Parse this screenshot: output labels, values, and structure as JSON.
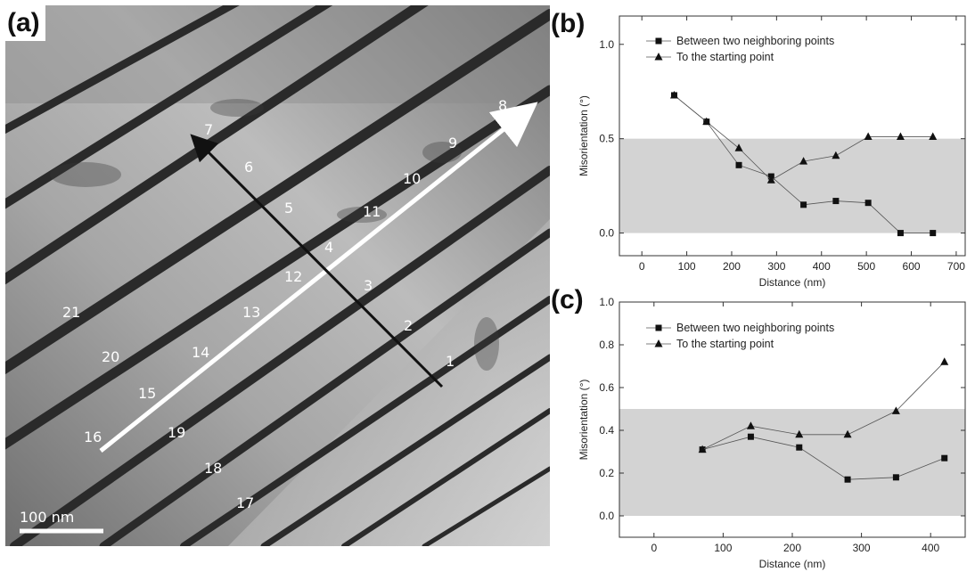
{
  "panels": {
    "a": {
      "tag": "(a)"
    },
    "b": {
      "tag": "(b)"
    },
    "c": {
      "tag": "(c)"
    }
  },
  "tem": {
    "scale_bar_label": "100 nm",
    "point_labels": [
      "1",
      "2",
      "3",
      "4",
      "5",
      "6",
      "7",
      "8",
      "9",
      "10",
      "11",
      "12",
      "13",
      "14",
      "15",
      "16",
      "17",
      "18",
      "19",
      "20",
      "21"
    ]
  },
  "chart_data": [
    {
      "type": "line",
      "panel": "(b)",
      "xlabel": "Distance (nm)",
      "ylabel": "Misorientation (°)",
      "xlim": [
        -50,
        720
      ],
      "ylim": [
        -0.12,
        1.15
      ],
      "xticks": [
        0,
        100,
        200,
        300,
        400,
        500,
        600,
        700
      ],
      "yticks": [
        0.0,
        0.5,
        1.0
      ],
      "ytick_labels": [
        "0.0",
        "0.5",
        "1.0"
      ],
      "shaded_band": [
        0,
        0.5
      ],
      "legend_position": "top-left",
      "series": [
        {
          "name": "Between two neighboring points",
          "marker": "square",
          "x": [
            72,
            144,
            216,
            288,
            360,
            432,
            504,
            576,
            648
          ],
          "y": [
            0.73,
            0.59,
            0.36,
            0.3,
            0.15,
            0.17,
            0.16,
            0.0,
            0.0
          ]
        },
        {
          "name": "To the starting point",
          "marker": "triangle",
          "x": [
            72,
            144,
            216,
            288,
            360,
            432,
            504,
            576,
            648
          ],
          "y": [
            0.73,
            0.59,
            0.45,
            0.28,
            0.38,
            0.41,
            0.51,
            0.51,
            0.51
          ]
        }
      ]
    },
    {
      "type": "line",
      "panel": "(c)",
      "xlabel": "Distance (nm)",
      "ylabel": "Misorientation (°)",
      "xlim": [
        -50,
        450
      ],
      "ylim": [
        -0.1,
        1.0
      ],
      "xticks": [
        0,
        100,
        200,
        300,
        400
      ],
      "yticks": [
        0.0,
        0.2,
        0.4,
        0.6,
        0.8,
        1.0
      ],
      "ytick_labels": [
        "0.0",
        "0.2",
        "0.4",
        "0.6",
        "0.8",
        "1.0"
      ],
      "shaded_band": [
        0,
        0.5
      ],
      "legend_position": "top-left",
      "series": [
        {
          "name": "Between two neighboring points",
          "marker": "square",
          "x": [
            70,
            140,
            210,
            280,
            350,
            420
          ],
          "y": [
            0.31,
            0.37,
            0.32,
            0.17,
            0.18,
            0.27
          ]
        },
        {
          "name": "To the starting point",
          "marker": "triangle",
          "x": [
            70,
            140,
            210,
            280,
            350,
            420
          ],
          "y": [
            0.31,
            0.42,
            0.38,
            0.38,
            0.49,
            0.72
          ]
        }
      ]
    }
  ]
}
